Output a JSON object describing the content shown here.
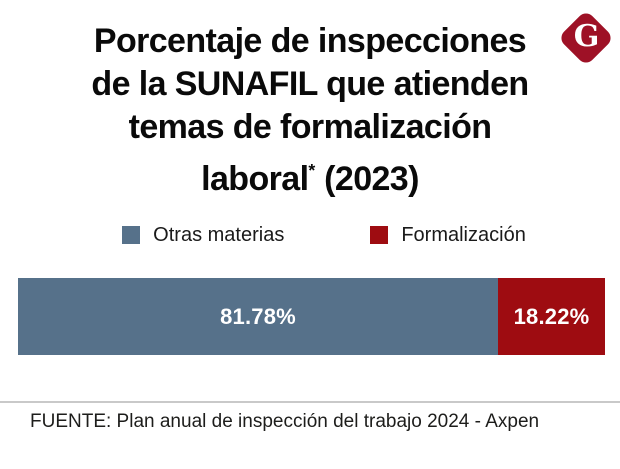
{
  "logo": {
    "letter": "G",
    "color": "#9e1126"
  },
  "title": {
    "lines": [
      "Porcentaje de inspecciones",
      "de la SUNAFIL que atienden",
      "temas de formalización"
    ],
    "last_line_pre": "laboral",
    "last_line_sup": "*",
    "last_line_post": " (2023)"
  },
  "legend": {
    "items": [
      {
        "label": "Otras materias",
        "color": "#56718a"
      },
      {
        "label": "Formalización",
        "color": "#9e0c11"
      }
    ]
  },
  "bar": {
    "segments": [
      {
        "label": "81.78%",
        "value": 81.78,
        "color": "#56718a"
      },
      {
        "label": "18.22%",
        "value": 18.22,
        "color": "#9e0c11"
      }
    ]
  },
  "footer": {
    "source": "FUENTE: Plan anual de inspección del trabajo 2024 - Axpen"
  },
  "chart_data": {
    "type": "bar",
    "orientation": "horizontal-stacked",
    "title": "Porcentaje de inspecciones de la SUNAFIL que atienden temas de formalización laboral* (2023)",
    "categories": [
      "Otras materias",
      "Formalización"
    ],
    "values": [
      81.78,
      18.22
    ],
    "data_labels": [
      "81.78%",
      "18.22%"
    ],
    "unit": "%",
    "colors": [
      "#56718a",
      "#9e0c11"
    ],
    "legend_position": "top",
    "grid": false,
    "source": "FUENTE: Plan anual de inspección del trabajo 2024 - Axpen"
  }
}
